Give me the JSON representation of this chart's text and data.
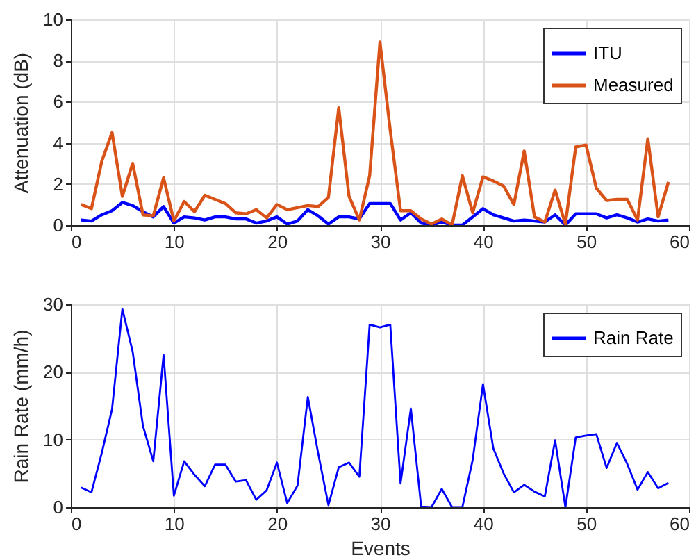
{
  "chart_data": [
    {
      "type": "line",
      "ylabel": "Attenuation (dB)",
      "x": [
        1,
        2,
        3,
        4,
        5,
        6,
        7,
        8,
        9,
        10,
        11,
        12,
        13,
        14,
        15,
        16,
        17,
        18,
        19,
        20,
        21,
        22,
        23,
        24,
        25,
        26,
        27,
        28,
        29,
        30,
        31,
        32,
        33,
        34,
        35,
        36,
        37,
        38,
        39,
        40,
        41,
        42,
        43,
        44,
        45,
        46,
        47,
        48,
        49,
        50,
        51,
        52,
        53,
        54,
        55,
        56,
        57,
        58
      ],
      "series": [
        {
          "name": "ITU",
          "color": "#0000ff",
          "values": [
            0.25,
            0.2,
            0.5,
            0.7,
            1.1,
            0.95,
            0.65,
            0.4,
            0.9,
            0.1,
            0.4,
            0.35,
            0.25,
            0.4,
            0.4,
            0.3,
            0.3,
            0.1,
            0.2,
            0.4,
            0.05,
            0.2,
            0.75,
            0.45,
            0.05,
            0.4,
            0.4,
            0.3,
            1.05,
            1.05,
            1.05,
            0.25,
            0.6,
            0.1,
            0.0,
            0.15,
            0.0,
            0.0,
            0.4,
            0.8,
            0.5,
            0.35,
            0.2,
            0.25,
            0.2,
            0.15,
            0.5,
            0.0,
            0.55,
            0.55,
            0.55,
            0.35,
            0.5,
            0.35,
            0.15,
            0.3,
            0.2,
            0.25
          ]
        },
        {
          "name": "Measured",
          "color": "#d95319",
          "values": [
            1.0,
            0.8,
            3.1,
            4.5,
            1.4,
            3.0,
            0.5,
            0.45,
            2.3,
            0.2,
            1.15,
            0.65,
            1.45,
            1.25,
            1.05,
            0.6,
            0.55,
            0.75,
            0.35,
            1.0,
            0.75,
            0.85,
            0.95,
            0.9,
            1.35,
            5.7,
            1.4,
            0.25,
            2.4,
            8.9,
            4.6,
            0.7,
            0.7,
            0.3,
            0.05,
            0.3,
            0.0,
            2.4,
            0.6,
            2.35,
            2.15,
            1.9,
            1.0,
            3.6,
            0.4,
            0.15,
            1.7,
            0.05,
            3.8,
            3.9,
            1.8,
            1.2,
            1.25,
            1.25,
            0.25,
            4.2,
            0.4,
            2.1
          ]
        }
      ],
      "xlim": [
        0,
        60
      ],
      "xticks": [
        0,
        10,
        20,
        30,
        40,
        50,
        60
      ],
      "ylim": [
        0,
        10
      ],
      "yticks": [
        0,
        2,
        4,
        6,
        8,
        10
      ],
      "grid": true,
      "legend": "top right"
    },
    {
      "type": "line",
      "xlabel": "Events",
      "ylabel": "Rain Rate (mm/h)",
      "x": [
        1,
        2,
        3,
        4,
        5,
        6,
        7,
        8,
        9,
        10,
        11,
        12,
        13,
        14,
        15,
        16,
        17,
        18,
        19,
        20,
        21,
        22,
        23,
        24,
        25,
        26,
        27,
        28,
        29,
        30,
        31,
        32,
        33,
        34,
        35,
        36,
        37,
        38,
        39,
        40,
        41,
        42,
        43,
        44,
        45,
        46,
        47,
        48,
        49,
        50,
        51,
        52,
        53,
        54,
        55,
        56,
        57,
        58
      ],
      "series": [
        {
          "name": "Rain Rate",
          "color": "#0000ff",
          "values": [
            2.9,
            2.2,
            8,
            14.5,
            29.3,
            23,
            12,
            6.8,
            22.5,
            1.7,
            6.8,
            4.8,
            3.1,
            6.3,
            6.3,
            3.8,
            4,
            1.1,
            2.5,
            6.6,
            0.6,
            3.2,
            16.3,
            8,
            0.3,
            5.9,
            6.6,
            4.5,
            27,
            26.6,
            27,
            3.5,
            14.6,
            0.1,
            0,
            2.7,
            0,
            0,
            7,
            18.2,
            8.7,
            5,
            2.2,
            3.3,
            2.3,
            1.6,
            9.9,
            0,
            10.3,
            10.6,
            10.8,
            5.8,
            9.5,
            6.4,
            2.6,
            5.2,
            2.8,
            3.6
          ]
        }
      ],
      "xlim": [
        0,
        60
      ],
      "xticks": [
        0,
        10,
        20,
        30,
        40,
        50,
        60
      ],
      "ylim": [
        0,
        30
      ],
      "yticks": [
        0,
        10,
        20,
        30
      ],
      "grid": true,
      "legend": "top right"
    }
  ]
}
